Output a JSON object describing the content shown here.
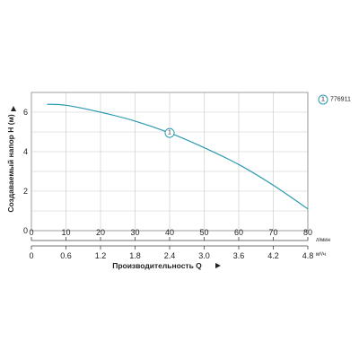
{
  "chart_data": {
    "type": "line",
    "x_primary": {
      "unit": "л/мин",
      "ticks": [
        "0",
        "10",
        "20",
        "30",
        "40",
        "50",
        "60",
        "70",
        "80"
      ],
      "range": [
        0,
        80
      ]
    },
    "x_secondary": {
      "unit": "м³/ч",
      "ticks": [
        "0",
        "0.6",
        "1.2",
        "1.8",
        "2.4",
        "3.0",
        "3.6",
        "4.2",
        "4.8"
      ],
      "label": "Производительность Q"
    },
    "y": {
      "label": "Создаваемый напор H (м)",
      "ticks": [
        "0",
        "2",
        "4",
        "6"
      ],
      "range": [
        0,
        7
      ]
    },
    "series": [
      {
        "name": "776911",
        "marker_label": "1",
        "color": "#2b9bb0",
        "x": [
          4.5,
          10,
          20,
          30,
          40,
          50,
          60,
          70,
          80
        ],
        "y": [
          6.4,
          6.35,
          6.0,
          5.55,
          4.95,
          4.2,
          3.35,
          2.3,
          1.1
        ],
        "marker_x": 40
      }
    ],
    "grid": true,
    "legend_position": "top-right"
  }
}
